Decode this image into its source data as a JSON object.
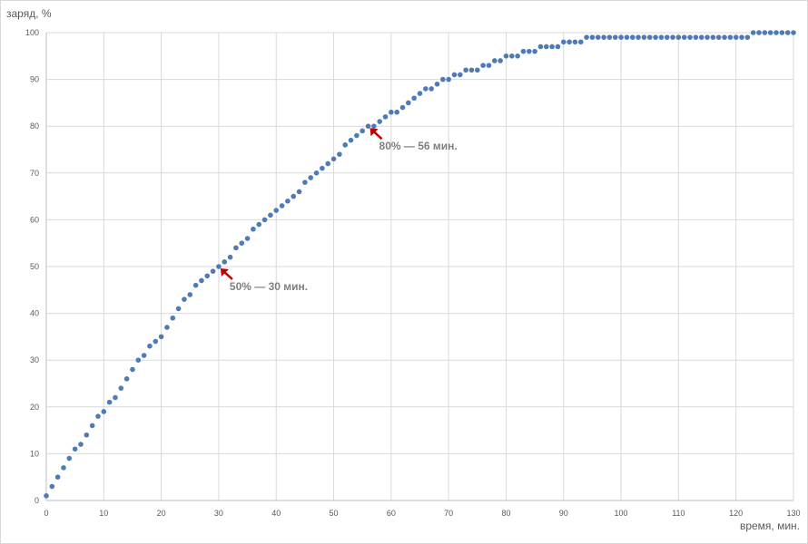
{
  "chart_data": {
    "type": "scatter",
    "title": "",
    "xlabel": "время, мин.",
    "ylabel": "заряд, %",
    "xlim": [
      0,
      130
    ],
    "ylim": [
      0,
      100
    ],
    "x_ticks": [
      0,
      10,
      20,
      30,
      40,
      50,
      60,
      70,
      80,
      90,
      100,
      110,
      120,
      130
    ],
    "y_ticks": [
      0,
      10,
      20,
      30,
      40,
      50,
      60,
      70,
      80,
      90,
      100
    ],
    "grid": true,
    "legend": "none",
    "series": [
      {
        "color": "#4f7ab8",
        "x": [
          0,
          1,
          2,
          3,
          4,
          5,
          6,
          7,
          8,
          9,
          10,
          11,
          12,
          13,
          14,
          15,
          16,
          17,
          18,
          19,
          20,
          21,
          22,
          23,
          24,
          25,
          26,
          27,
          28,
          29,
          30,
          31,
          32,
          33,
          34,
          35,
          36,
          37,
          38,
          39,
          40,
          41,
          42,
          43,
          44,
          45,
          46,
          47,
          48,
          49,
          50,
          51,
          52,
          53,
          54,
          55,
          56,
          57,
          58,
          59,
          60,
          61,
          62,
          63,
          64,
          65,
          66,
          67,
          68,
          69,
          70,
          71,
          72,
          73,
          74,
          75,
          76,
          77,
          78,
          79,
          80,
          81,
          82,
          83,
          84,
          85,
          86,
          87,
          88,
          89,
          90,
          91,
          92,
          93,
          94,
          95,
          96,
          97,
          98,
          99,
          100,
          101,
          102,
          103,
          104,
          105,
          106,
          107,
          108,
          109,
          110,
          111,
          112,
          113,
          114,
          115,
          116,
          117,
          118,
          119,
          120,
          121,
          122,
          123,
          124,
          125,
          126,
          127,
          128,
          129,
          130
        ],
        "y": [
          1,
          3,
          5,
          7,
          9,
          11,
          12,
          14,
          16,
          18,
          19,
          21,
          22,
          24,
          26,
          28,
          30,
          31,
          33,
          34,
          35,
          37,
          39,
          41,
          43,
          44,
          46,
          47,
          48,
          49,
          50,
          51,
          52,
          54,
          55,
          56,
          58,
          59,
          60,
          61,
          62,
          63,
          64,
          65,
          66,
          68,
          69,
          70,
          71,
          72,
          73,
          74,
          76,
          77,
          78,
          79,
          80,
          80,
          81,
          82,
          83,
          83,
          84,
          85,
          86,
          87,
          88,
          88,
          89,
          90,
          90,
          91,
          91,
          92,
          92,
          92,
          93,
          93,
          94,
          94,
          95,
          95,
          95,
          96,
          96,
          96,
          97,
          97,
          97,
          97,
          98,
          98,
          98,
          98,
          99,
          99,
          99,
          99,
          99,
          99,
          99,
          99,
          99,
          99,
          99,
          99,
          99,
          99,
          99,
          99,
          99,
          99,
          99,
          99,
          99,
          99,
          99,
          99,
          99,
          99,
          99,
          99,
          99,
          100,
          100,
          100,
          100,
          100,
          100,
          100,
          100
        ]
      }
    ],
    "annotations": [
      {
        "text": "80% — 56 мин.",
        "x": 56,
        "y": 80,
        "color": "#c00000"
      },
      {
        "text": "50% — 30 мин.",
        "x": 30,
        "y": 50,
        "color": "#c00000"
      }
    ]
  }
}
